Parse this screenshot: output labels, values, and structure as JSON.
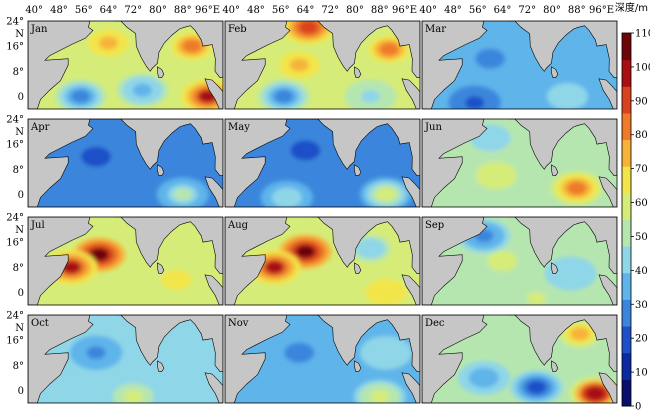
{
  "figure": {
    "lon_ticks": [
      "40°",
      "48°",
      "56°",
      "64°",
      "72°",
      "80°",
      "88°",
      "96°E"
    ],
    "lat_ticks": [
      "24°",
      "N",
      "16°",
      "8°",
      "0"
    ]
  },
  "colorbar": {
    "title": "深度/m",
    "ticks": [
      "0",
      "10",
      "20",
      "30",
      "40",
      "50",
      "60",
      "70",
      "80",
      "90",
      "100",
      "110"
    ],
    "range": [
      0,
      110
    ],
    "colors": [
      "#08106b",
      "#0b2aa0",
      "#1f50c8",
      "#3b86dc",
      "#5fb4ea",
      "#8fd6e8",
      "#b6e6b0",
      "#d6ec78",
      "#f2e54a",
      "#f7b23a",
      "#ee7a2a",
      "#d8421f",
      "#a80e12",
      "#6e0509"
    ]
  },
  "land_color": "#c6c6c6",
  "panels": [
    {
      "label": "Jan",
      "mean_depth": 55,
      "blobs": [
        {
          "lon": 91,
          "lat": 16,
          "value": 85
        },
        {
          "lon": 64,
          "lat": 17,
          "value": 75
        },
        {
          "lon": 96,
          "lat": 0,
          "value": 95
        },
        {
          "lon": 75,
          "lat": 2,
          "value": 35
        },
        {
          "lon": 55,
          "lat": 0,
          "value": 25
        }
      ]
    },
    {
      "label": "Feb",
      "mean_depth": 55,
      "blobs": [
        {
          "lon": 91,
          "lat": 15,
          "value": 85
        },
        {
          "lon": 65,
          "lat": 22,
          "value": 90
        },
        {
          "lon": 62,
          "lat": 10,
          "value": 75
        },
        {
          "lon": 57,
          "lat": 0,
          "value": 25
        },
        {
          "lon": 85,
          "lat": 0,
          "value": 45
        }
      ]
    },
    {
      "label": "Mar",
      "mean_depth": 35,
      "blobs": [
        {
          "lon": 60,
          "lat": 12,
          "value": 30
        },
        {
          "lon": 85,
          "lat": 0,
          "value": 45
        },
        {
          "lon": 55,
          "lat": -2,
          "value": 20
        }
      ]
    },
    {
      "label": "Apr",
      "mean_depth": 28,
      "blobs": [
        {
          "lon": 60,
          "lat": 12,
          "value": 22
        },
        {
          "lon": 88,
          "lat": 0,
          "value": 50
        },
        {
          "lon": 56,
          "lat": -1,
          "value": 30
        }
      ]
    },
    {
      "label": "May",
      "mean_depth": 28,
      "blobs": [
        {
          "lon": 64,
          "lat": 14,
          "value": 20
        },
        {
          "lon": 90,
          "lat": 0,
          "value": 60
        },
        {
          "lon": 58,
          "lat": -1,
          "value": 45
        }
      ]
    },
    {
      "label": "Jun",
      "mean_depth": 52,
      "blobs": [
        {
          "lon": 88,
          "lat": 2,
          "value": 80
        },
        {
          "lon": 62,
          "lat": 6,
          "value": 60
        },
        {
          "lon": 60,
          "lat": 18,
          "value": 40
        }
      ]
    },
    {
      "label": "Jul",
      "mean_depth": 60,
      "blobs": [
        {
          "lon": 61,
          "lat": 12,
          "value": 105
        },
        {
          "lon": 52,
          "lat": 8,
          "value": 95
        },
        {
          "lon": 86,
          "lat": 4,
          "value": 65
        },
        {
          "lon": 70,
          "lat": -2,
          "value": 55
        }
      ]
    },
    {
      "label": "Aug",
      "mean_depth": 60,
      "blobs": [
        {
          "lon": 64,
          "lat": 13,
          "value": 105
        },
        {
          "lon": 54,
          "lat": 8,
          "value": 95
        },
        {
          "lon": 85,
          "lat": 14,
          "value": 40
        },
        {
          "lon": 90,
          "lat": 0,
          "value": 70
        }
      ]
    },
    {
      "label": "Sep",
      "mean_depth": 48,
      "blobs": [
        {
          "lon": 64,
          "lat": 10,
          "value": 60
        },
        {
          "lon": 86,
          "lat": 6,
          "value": 40
        },
        {
          "lon": 58,
          "lat": 18,
          "value": 30
        },
        {
          "lon": 75,
          "lat": -2,
          "value": 55
        }
      ]
    },
    {
      "label": "Oct",
      "mean_depth": 40,
      "blobs": [
        {
          "lon": 60,
          "lat": 12,
          "value": 30
        },
        {
          "lon": 72,
          "lat": -2,
          "value": 55
        },
        {
          "lon": 88,
          "lat": 10,
          "value": 45
        }
      ]
    },
    {
      "label": "Nov",
      "mean_depth": 38,
      "blobs": [
        {
          "lon": 62,
          "lat": 12,
          "value": 28
        },
        {
          "lon": 88,
          "lat": -2,
          "value": 60
        },
        {
          "lon": 90,
          "lat": 12,
          "value": 45
        }
      ]
    },
    {
      "label": "Dec",
      "mean_depth": 48,
      "blobs": [
        {
          "lon": 94,
          "lat": -1,
          "value": 100
        },
        {
          "lon": 89,
          "lat": 18,
          "value": 75
        },
        {
          "lon": 58,
          "lat": 4,
          "value": 35
        },
        {
          "lon": 75,
          "lat": 1,
          "value": 20
        }
      ]
    }
  ]
}
